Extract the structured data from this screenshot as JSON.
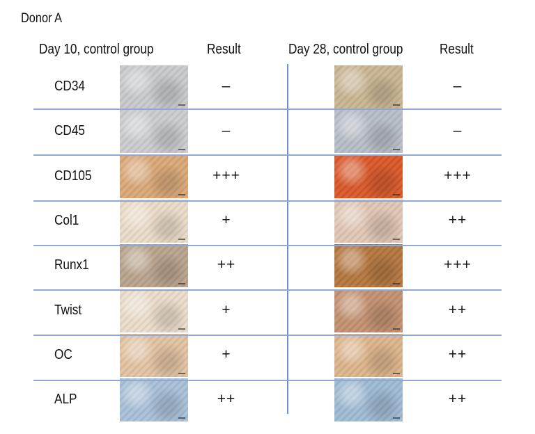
{
  "donor_label": "Donor A",
  "left_header": "Day 10, control group",
  "left_result_header": "Result",
  "right_header": "Day 28, control group",
  "right_result_header": "Result",
  "rows": [
    {
      "marker": "CD34",
      "day10_result": "–",
      "day28_result": "–"
    },
    {
      "marker": "CD45",
      "day10_result": "–",
      "day28_result": "–"
    },
    {
      "marker": "CD105",
      "day10_result": "+++",
      "day28_result": "+++"
    },
    {
      "marker": "Col1",
      "day10_result": "+",
      "day28_result": "++"
    },
    {
      "marker": "Runx1",
      "day10_result": "++",
      "day28_result": "+++"
    },
    {
      "marker": "Twist",
      "day10_result": "+",
      "day28_result": "++"
    },
    {
      "marker": "OC",
      "day10_result": "+",
      "day28_result": "++"
    },
    {
      "marker": "ALP",
      "day10_result": "++",
      "day28_result": "++"
    }
  ],
  "image_tones": {
    "day10": [
      "#c8c9cb",
      "#cbcccf",
      "#d9a877",
      "#eadbc8",
      "#b9a38c",
      "#eadccb",
      "#e2c3a2",
      "#a9c0d8"
    ],
    "day28": [
      "#c9b592",
      "#b7bec7",
      "#d9582a",
      "#e0c6b4",
      "#b4773f",
      "#c29070",
      "#dcb48b",
      "#9fbad3"
    ]
  }
}
